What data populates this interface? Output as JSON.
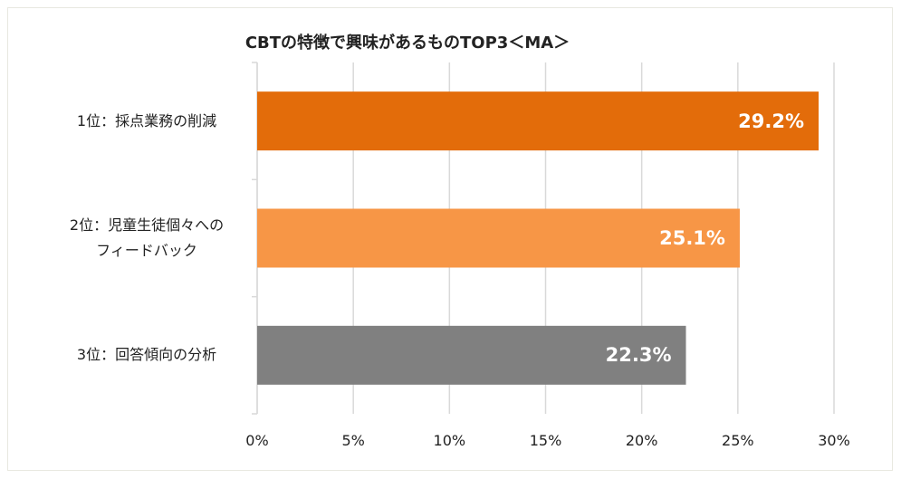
{
  "chart_data": {
    "type": "bar",
    "orientation": "horizontal",
    "title": "CBTの特徴で興味があるものTOP3＜MA＞",
    "categories": [
      "1位：採点業務の削減",
      "2位：児童生徒個々への\nフィードバック",
      "3位：回答傾向の分析"
    ],
    "values": [
      29.2,
      25.1,
      22.3
    ],
    "value_labels": [
      "29.2%",
      "25.1%",
      "22.3%"
    ],
    "colors": [
      "#e36c0a",
      "#f79646",
      "#808080"
    ],
    "xlim": [
      0,
      30
    ],
    "xticks": [
      {
        "value": 0,
        "label": "0%"
      },
      {
        "value": 5,
        "label": "5%"
      },
      {
        "value": 10,
        "label": "10%"
      },
      {
        "value": 15,
        "label": "15%"
      },
      {
        "value": 20,
        "label": "20%"
      },
      {
        "value": 25,
        "label": "25%"
      },
      {
        "value": 30,
        "label": "30%"
      }
    ],
    "grid": true
  }
}
